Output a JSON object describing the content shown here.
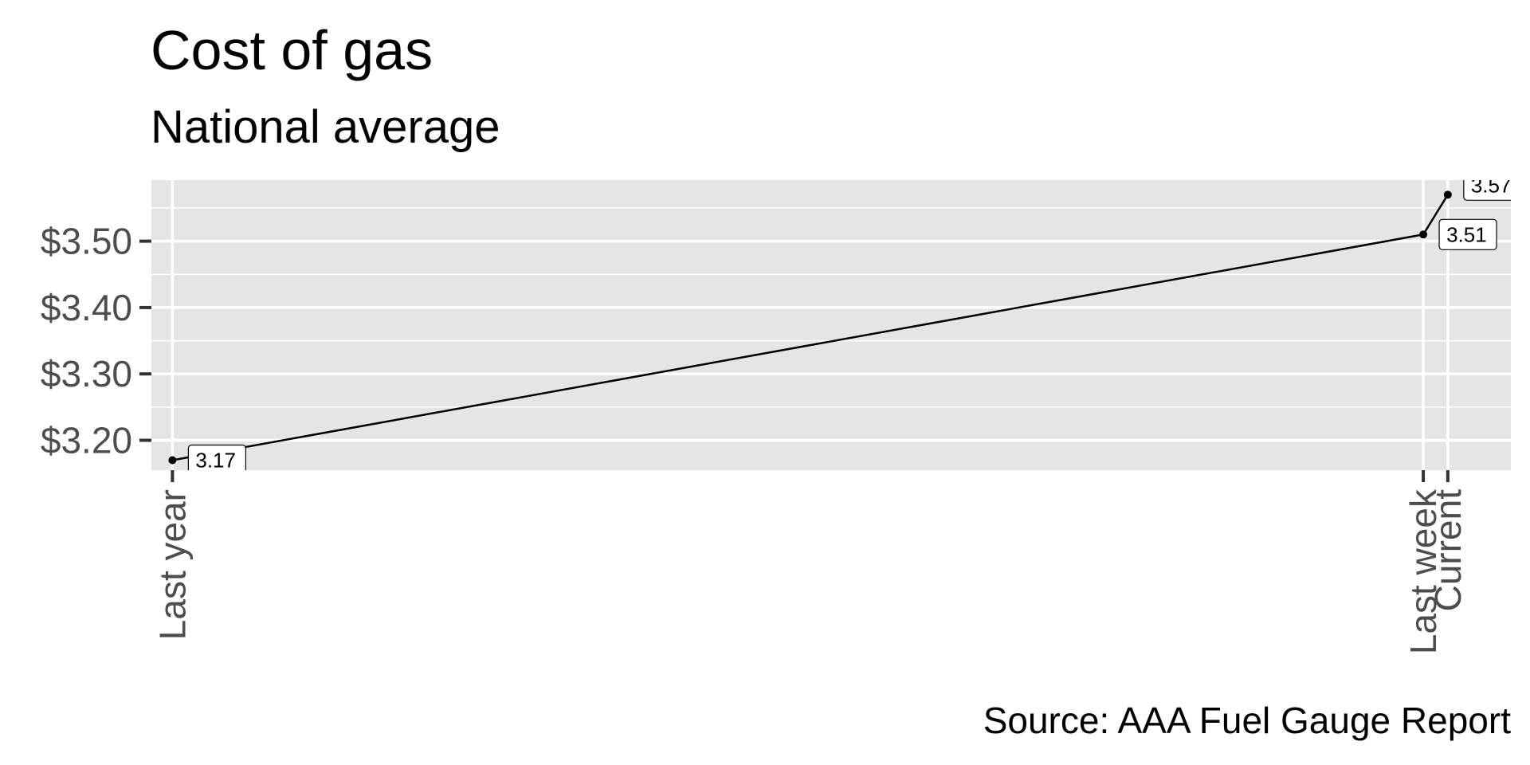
{
  "chart_data": {
    "type": "line",
    "title": "Cost of gas",
    "subtitle": "National average",
    "caption": "Source: AAA Fuel Gauge Report",
    "xlabel": "",
    "ylabel": "",
    "x_axis": {
      "type": "date",
      "range": [
        "2021-04-27",
        "2022-05-20"
      ],
      "major_ticks": [
        "2021-05-03",
        "2022-04-25",
        "2022-05-02"
      ],
      "minor_ticks": []
    },
    "y_axis": {
      "range": [
        3.155,
        3.592
      ],
      "major_ticks": [
        3.2,
        3.3,
        3.4,
        3.5
      ],
      "minor_ticks": [
        3.15,
        3.25,
        3.35,
        3.45,
        3.55
      ],
      "tick_labels": [
        "$3.20",
        "$3.30",
        "$3.40",
        "$3.50"
      ]
    },
    "categories": [
      "Last year",
      "Last week",
      "Current"
    ],
    "x": [
      "2021-05-03",
      "2022-04-25",
      "2022-05-02"
    ],
    "values": [
      3.17,
      3.51,
      3.57
    ],
    "labels": [
      "3.17",
      "3.51",
      "3.57"
    ],
    "grid": true,
    "panel_background": "#e5e5e5",
    "grid_color": "#ffffff",
    "line_color": "#000000",
    "tick_color": "#333333",
    "tick_label_color": "#4d4d4d"
  }
}
